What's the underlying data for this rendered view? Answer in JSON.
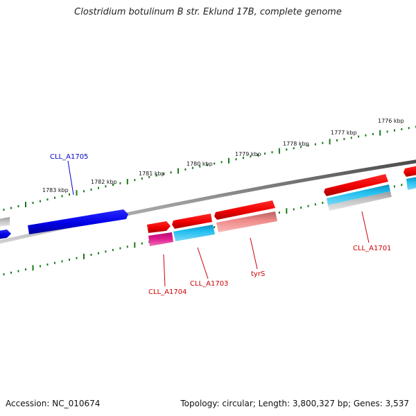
{
  "title": "Clostridium botulinum B str. Eklund 17B, complete genome",
  "footer": {
    "accession": "Accession: NC_010674",
    "topology": "Topology: circular; Length: 3,800,327 bp; Genes: 3,537"
  },
  "ruler_labels": [
    "1776 kbp",
    "1777 kbp",
    "1778 kbp",
    "1779 kbp",
    "1780 kbp",
    "1781 kbp",
    "1782 kbp",
    "1783 kbp"
  ],
  "gene_labels": [
    {
      "text": "CLL_A1705",
      "color": "#0000cc"
    },
    {
      "text": "CLL_A1704",
      "color": "#cc0000"
    },
    {
      "text": "CLL_A1703",
      "color": "#cc0000"
    },
    {
      "text": "tyrS",
      "color": "#cc0000"
    },
    {
      "text": "CLL_A1701",
      "color": "#cc0000"
    }
  ],
  "colors": {
    "forward_gene": "#ff0000",
    "reverse_gene": "#0000ee",
    "cds_cyan": "#1ab8ee",
    "cds_magenta": "#e0188f",
    "cds_pink": "#f09090",
    "cds_gray": "#c0c0c0",
    "ruler_tick": "#1a7a1a",
    "backbone": "#808080"
  }
}
